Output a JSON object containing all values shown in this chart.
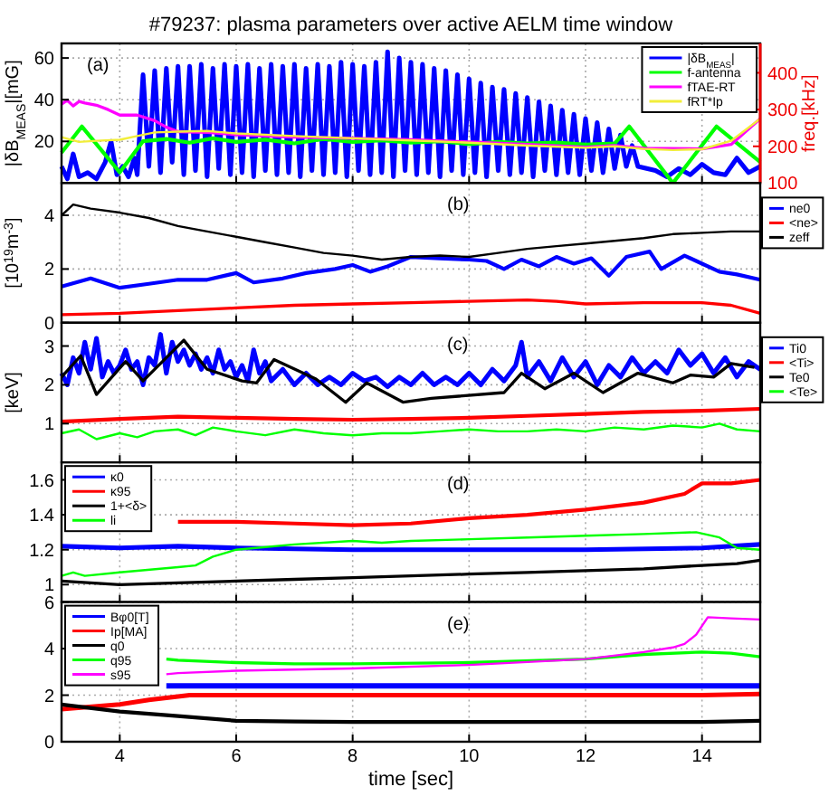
{
  "chart_data": [
    {
      "type": "line",
      "title": "#79237: plasma parameters over active AELM time window",
      "ylabel": "|δB$_{MEAS}$|[mG]",
      "y2label": "freq.[kHz]",
      "annotations": [
        "(a)"
      ],
      "xlim": [
        3,
        15
      ],
      "xticks": [
        4,
        6,
        8,
        10,
        12,
        14
      ],
      "ylim": [
        0,
        67
      ],
      "yticks": [
        20,
        40,
        60
      ],
      "y2lim": [
        100,
        480
      ],
      "y2ticks": [
        100,
        200,
        300,
        400
      ],
      "grid": true,
      "legend": "top right",
      "tick_labels": "y",
      "series": [
        {
          "name": "|δB$_{MEAS}$|",
          "color": "#0000ff",
          "x": [
            3,
            3.1,
            3.2,
            3.3,
            3.45,
            3.6,
            3.75,
            3.85,
            3.95,
            4.05,
            4.15,
            4.25,
            4.3,
            4.4,
            4.5,
            4.6,
            4.7,
            4.8,
            4.9,
            5.0,
            5.1,
            5.2,
            5.3,
            5.4,
            5.5,
            5.6,
            5.7,
            5.8,
            5.9,
            6.0,
            6.1,
            6.2,
            6.3,
            6.4,
            6.5,
            6.6,
            6.7,
            6.8,
            6.9,
            7.0,
            7.1,
            7.2,
            7.3,
            7.4,
            7.5,
            7.6,
            7.7,
            7.8,
            7.9,
            8.0,
            8.1,
            8.2,
            8.3,
            8.4,
            8.5,
            8.6,
            8.7,
            8.8,
            8.9,
            9.0,
            9.1,
            9.2,
            9.3,
            9.4,
            9.5,
            9.6,
            9.7,
            9.8,
            9.9,
            10.0,
            10.1,
            10.2,
            10.3,
            10.4,
            10.5,
            10.6,
            10.7,
            10.8,
            10.9,
            11.0,
            11.1,
            11.2,
            11.3,
            11.4,
            11.5,
            11.6,
            11.7,
            11.8,
            11.9,
            12.0,
            12.1,
            12.2,
            12.3,
            12.4,
            12.5,
            12.6,
            12.7,
            12.8,
            12.9,
            13.2,
            13.4,
            13.6,
            13.8,
            14.0,
            14.2,
            14.4,
            14.6,
            14.8,
            15
          ],
          "values": [
            8,
            2,
            14,
            3,
            5,
            2,
            10,
            20,
            4,
            8,
            3,
            12,
            4,
            52,
            8,
            54,
            5,
            55,
            10,
            56,
            4,
            56,
            6,
            57,
            3,
            55,
            7,
            57,
            4,
            56,
            5,
            57,
            3,
            55,
            6,
            57,
            4,
            56,
            5,
            57,
            3,
            55,
            6,
            57,
            4,
            56,
            5,
            58,
            3,
            57,
            6,
            56,
            4,
            58,
            5,
            63,
            3,
            60,
            6,
            58,
            4,
            57,
            5,
            55,
            3,
            54,
            6,
            52,
            4,
            50,
            5,
            48,
            3,
            46,
            6,
            45,
            4,
            43,
            5,
            41,
            3,
            39,
            6,
            37,
            4,
            35,
            5,
            33,
            4,
            31,
            6,
            29,
            5,
            26,
            7,
            23,
            8,
            18,
            8,
            6,
            3,
            7,
            4,
            9,
            5,
            4,
            12,
            5,
            8
          ]
        },
        {
          "name": "f-antenna",
          "color": "#00ff00",
          "axis": "y2",
          "x": [
            3,
            3.35,
            4.0,
            4.4,
            4.8,
            5.2,
            5.6,
            6,
            6.5,
            7,
            7.5,
            8,
            8.5,
            9,
            9.5,
            10,
            10.5,
            11,
            11.5,
            12,
            12.5,
            12.75,
            13.5,
            14.25,
            15
          ],
          "values": [
            183,
            254,
            129,
            214,
            220,
            210,
            222,
            212,
            218,
            208,
            220,
            212,
            216,
            210,
            214,
            206,
            212,
            208,
            210,
            205,
            208,
            254,
            100,
            254,
            157
          ]
        },
        {
          "name": "fTAE-RT",
          "color": "#ff00ff",
          "axis": "y2",
          "x": [
            3,
            3.1,
            3.2,
            3.3,
            3.4,
            3.6,
            3.8,
            4,
            4.3,
            4.6,
            4.8,
            5,
            5.5,
            6,
            7,
            8,
            9,
            10,
            11,
            12,
            12.5,
            13,
            14,
            14.5,
            15
          ],
          "values": [
            315,
            325,
            310,
            322,
            318,
            312,
            300,
            285,
            285,
            270,
            252,
            240,
            238,
            232,
            225,
            222,
            218,
            212,
            205,
            198,
            202,
            195,
            193,
            205,
            275
          ]
        },
        {
          "name": "fRT*Ip",
          "color": "#f2ee3a",
          "axis": "y2",
          "x": [
            3,
            3.3,
            3.6,
            4,
            4.3,
            4.6,
            5,
            5.5,
            6,
            7,
            8,
            9,
            10,
            11,
            12,
            12.5,
            13,
            13.5,
            14,
            14.5,
            15
          ],
          "values": [
            225,
            212,
            215,
            218,
            228,
            238,
            240,
            242,
            235,
            228,
            222,
            216,
            210,
            202,
            196,
            200,
            193,
            190,
            192,
            215,
            275
          ]
        }
      ]
    },
    {
      "type": "line",
      "ylabel": "[10$^{19}$m$^{-3}$]",
      "annotations": [
        "(b)"
      ],
      "xlim": [
        3,
        15
      ],
      "xticks": [
        4,
        6,
        8,
        10,
        12,
        14
      ],
      "ylim": [
        0,
        5.2
      ],
      "yticks": [
        0,
        2,
        4
      ],
      "grid": true,
      "legend": "right",
      "tick_labels": "y",
      "series": [
        {
          "name": "ne0",
          "color": "#0000ff",
          "x": [
            3,
            3.5,
            4,
            4.5,
            5,
            5.5,
            6,
            6.3,
            6.8,
            7.2,
            7.7,
            8,
            8.3,
            8.6,
            9,
            9.5,
            10,
            10.3,
            10.6,
            10.9,
            11.2,
            11.5,
            11.8,
            12.1,
            12.4,
            12.7,
            13.1,
            13.3,
            13.7,
            13.9,
            14.3,
            14.6,
            15
          ],
          "values": [
            1.35,
            1.65,
            1.3,
            1.45,
            1.6,
            1.6,
            1.85,
            1.5,
            1.65,
            1.85,
            2.0,
            2.15,
            1.9,
            2.1,
            2.45,
            2.4,
            2.35,
            2.3,
            2.0,
            2.35,
            2.1,
            2.45,
            2.2,
            2.4,
            1.75,
            2.45,
            2.65,
            2.0,
            2.5,
            2.3,
            1.9,
            1.8,
            1.6
          ]
        },
        {
          "name": "<ne>",
          "color": "#ff0000",
          "x": [
            3,
            4,
            5,
            6,
            7,
            8,
            9,
            10,
            11,
            11.5,
            12,
            13,
            14,
            14.5,
            15
          ],
          "values": [
            0.3,
            0.35,
            0.45,
            0.55,
            0.65,
            0.7,
            0.75,
            0.8,
            0.85,
            0.8,
            0.7,
            0.75,
            0.75,
            0.65,
            0.35
          ]
        },
        {
          "name": "zeff",
          "color": "#000000",
          "x": [
            3,
            3.2,
            3.5,
            4,
            4.5,
            5,
            5.5,
            6,
            6.5,
            7,
            7.5,
            8,
            8.5,
            9,
            9.5,
            10,
            10.5,
            11,
            11.5,
            12,
            12.5,
            13,
            13.5,
            14,
            14.5,
            15
          ],
          "values": [
            4.0,
            4.4,
            4.25,
            4.1,
            3.9,
            3.6,
            3.4,
            3.2,
            3.0,
            2.8,
            2.6,
            2.5,
            2.35,
            2.45,
            2.5,
            2.45,
            2.6,
            2.75,
            2.85,
            2.95,
            3.05,
            3.15,
            3.3,
            3.35,
            3.4,
            3.4
          ]
        }
      ]
    },
    {
      "type": "line",
      "ylabel": "[keV]",
      "annotations": [
        "(c)"
      ],
      "xlim": [
        3,
        15
      ],
      "xticks": [
        4,
        6,
        8,
        10,
        12,
        14
      ],
      "ylim": [
        0,
        3.6
      ],
      "yticks": [
        1,
        2,
        3
      ],
      "grid": true,
      "legend": "right",
      "tick_labels": "y",
      "series": [
        {
          "name": "Ti0",
          "color": "#0000ff",
          "x": [
            3,
            3.1,
            3.2,
            3.3,
            3.4,
            3.5,
            3.6,
            3.7,
            3.8,
            3.9,
            4,
            4.1,
            4.2,
            4.3,
            4.4,
            4.5,
            4.6,
            4.7,
            4.8,
            4.9,
            5,
            5.1,
            5.2,
            5.3,
            5.4,
            5.5,
            5.6,
            5.7,
            5.8,
            5.9,
            6,
            6.1,
            6.2,
            6.3,
            6.4,
            6.5,
            6.6,
            6.8,
            7,
            7.2,
            7.4,
            7.6,
            7.8,
            8,
            8.2,
            8.4,
            8.6,
            8.8,
            9,
            9.2,
            9.4,
            9.6,
            9.8,
            10,
            10.2,
            10.4,
            10.6,
            10.8,
            10.9,
            11,
            11.2,
            11.4,
            11.6,
            11.8,
            12,
            12.2,
            12.4,
            12.6,
            12.8,
            13,
            13.2,
            13.4,
            13.6,
            13.8,
            14,
            14.2,
            14.4,
            14.6,
            14.8,
            15
          ],
          "values": [
            2.3,
            2.0,
            2.7,
            2.3,
            3.1,
            2.4,
            3.2,
            2.2,
            2.6,
            2.3,
            2.5,
            2.9,
            2.4,
            2.6,
            2.0,
            2.7,
            2.5,
            3.3,
            2.3,
            3.1,
            2.6,
            2.9,
            2.5,
            2.8,
            2.4,
            2.7,
            2.3,
            2.9,
            2.4,
            2.6,
            2.2,
            2.5,
            2.1,
            2.9,
            2.3,
            2.6,
            2.1,
            2.4,
            2.0,
            2.3,
            2.0,
            2.2,
            2.0,
            2.3,
            2.1,
            2.2,
            1.95,
            2.2,
            2.0,
            2.3,
            2.0,
            2.2,
            2.0,
            2.3,
            2.0,
            2.4,
            2.1,
            2.5,
            3.1,
            2.2,
            2.6,
            2.1,
            2.7,
            2.2,
            2.6,
            2.0,
            2.5,
            2.2,
            2.7,
            2.3,
            2.6,
            2.3,
            2.9,
            2.5,
            2.8,
            2.3,
            2.7,
            2.2,
            2.6,
            2.4
          ]
        },
        {
          "name": "<Ti>",
          "color": "#ff0000",
          "x": [
            3,
            4,
            5,
            6,
            7,
            8,
            9,
            10,
            11,
            12,
            13,
            14,
            15
          ],
          "values": [
            1.05,
            1.12,
            1.18,
            1.15,
            1.12,
            1.1,
            1.12,
            1.15,
            1.2,
            1.25,
            1.3,
            1.33,
            1.38
          ]
        },
        {
          "name": "Te0",
          "color": "#000000",
          "x": [
            3,
            3.33,
            3.6,
            4.1,
            4.4,
            5.1,
            5.5,
            6.1,
            6.35,
            6.65,
            7.37,
            7.88,
            8.24,
            8.87,
            9.35,
            10.6,
            10.9,
            11.3,
            11.8,
            12.3,
            12.9,
            13.5,
            13.8,
            14.2,
            14.5,
            14.9
          ],
          "values": [
            2.2,
            2.75,
            1.75,
            2.6,
            2.1,
            3.15,
            2.4,
            2.1,
            2.05,
            2.65,
            2.15,
            1.55,
            2.05,
            1.55,
            1.65,
            1.8,
            2.3,
            1.9,
            2.3,
            1.8,
            2.3,
            2.05,
            2.25,
            2.2,
            2.55,
            2.45
          ]
        },
        {
          "name": "<Te>",
          "color": "#00ff00",
          "x": [
            3,
            3.3,
            3.6,
            4,
            4.3,
            4.6,
            5,
            5.3,
            5.6,
            6,
            6.5,
            7,
            7.5,
            8,
            8.5,
            9,
            9.5,
            10,
            10.5,
            11,
            11.5,
            12,
            12.5,
            13,
            13.5,
            14,
            14.3,
            14.6,
            15
          ],
          "values": [
            0.75,
            0.85,
            0.6,
            0.75,
            0.65,
            0.8,
            0.85,
            0.7,
            0.9,
            0.8,
            0.7,
            0.85,
            0.75,
            0.7,
            0.75,
            0.75,
            0.8,
            0.85,
            0.8,
            0.8,
            0.85,
            0.8,
            0.9,
            0.85,
            0.95,
            0.9,
            1.0,
            0.85,
            0.8
          ]
        }
      ]
    },
    {
      "type": "line",
      "annotations": [
        "(d)"
      ],
      "xlim": [
        3,
        15
      ],
      "xticks": [
        4,
        6,
        8,
        10,
        12,
        14
      ],
      "ylim": [
        0.9,
        1.7
      ],
      "yticks": [
        1,
        1.2,
        1.4,
        1.6
      ],
      "grid": true,
      "legend": "top left",
      "tick_labels": "y",
      "series": [
        {
          "name": "κ0",
          "color": "#0000ff",
          "x": [
            3,
            4,
            5,
            6,
            8,
            10,
            12,
            14,
            15
          ],
          "values": [
            1.22,
            1.21,
            1.22,
            1.21,
            1.2,
            1.2,
            1.2,
            1.21,
            1.23
          ]
        },
        {
          "name": "κ95",
          "color": "#ff0000",
          "x": [
            5,
            6,
            7,
            8,
            9,
            10,
            11,
            12,
            13,
            13.7,
            14,
            14.5,
            15
          ],
          "values": [
            1.36,
            1.36,
            1.35,
            1.34,
            1.35,
            1.38,
            1.4,
            1.43,
            1.47,
            1.52,
            1.58,
            1.58,
            1.6
          ]
        },
        {
          "name": "1+<δ>",
          "color": "#000000",
          "x": [
            3,
            4,
            5,
            6,
            7,
            8,
            9,
            10,
            11,
            12,
            13,
            14,
            14.6,
            15
          ],
          "values": [
            1.02,
            1.0,
            1.01,
            1.02,
            1.03,
            1.04,
            1.05,
            1.06,
            1.07,
            1.08,
            1.09,
            1.11,
            1.12,
            1.14
          ]
        },
        {
          "name": "li",
          "color": "#00ff00",
          "x": [
            3,
            3.2,
            3.4,
            4,
            5,
            5.3,
            5.6,
            6,
            7,
            8,
            8.5,
            9,
            10,
            11,
            12,
            13,
            13.9,
            14.3,
            14.6,
            15
          ],
          "values": [
            1.05,
            1.07,
            1.05,
            1.07,
            1.1,
            1.11,
            1.16,
            1.2,
            1.23,
            1.25,
            1.24,
            1.25,
            1.26,
            1.27,
            1.28,
            1.29,
            1.3,
            1.27,
            1.21,
            1.2
          ]
        }
      ]
    },
    {
      "type": "line",
      "xlabel": "time [sec]",
      "annotations": [
        "(e)"
      ],
      "xlim": [
        3,
        15
      ],
      "xticks": [
        4,
        6,
        8,
        10,
        12,
        14
      ],
      "ylim": [
        0,
        6
      ],
      "yticks": [
        0,
        2,
        4,
        6
      ],
      "grid": true,
      "legend": "top left",
      "series": [
        {
          "name": "Bφ0[T]",
          "color": "#0000ff",
          "x": [
            4.8,
            15
          ],
          "values": [
            2.4,
            2.4
          ]
        },
        {
          "name": "Ip[MA]",
          "color": "#ff0000",
          "x": [
            3,
            4,
            4.5,
            5.2,
            6,
            8,
            10,
            12,
            14,
            15
          ],
          "values": [
            1.4,
            1.6,
            1.8,
            2.0,
            2.0,
            2.0,
            2.0,
            2.0,
            2.0,
            2.05
          ]
        },
        {
          "name": "q0",
          "color": "#000000",
          "x": [
            3,
            4,
            5,
            6,
            7,
            8,
            10,
            12,
            14,
            15
          ],
          "values": [
            1.6,
            1.3,
            1.1,
            0.9,
            0.87,
            0.85,
            0.85,
            0.85,
            0.85,
            0.9
          ]
        },
        {
          "name": "q95",
          "color": "#00ff00",
          "x": [
            4.8,
            5,
            6,
            7,
            8,
            10,
            12,
            13,
            14,
            14.5,
            15
          ],
          "values": [
            3.55,
            3.5,
            3.4,
            3.35,
            3.35,
            3.4,
            3.55,
            3.75,
            3.85,
            3.8,
            3.65
          ]
        },
        {
          "name": "s95",
          "color": "#ff00ff",
          "x": [
            4.8,
            5,
            6,
            8,
            10,
            12,
            13,
            13.5,
            13.7,
            13.9,
            14.1,
            14.5,
            15
          ],
          "values": [
            2.9,
            2.95,
            3.05,
            3.15,
            3.3,
            3.55,
            3.85,
            4.05,
            4.2,
            4.6,
            5.35,
            5.3,
            5.25
          ]
        }
      ]
    }
  ]
}
